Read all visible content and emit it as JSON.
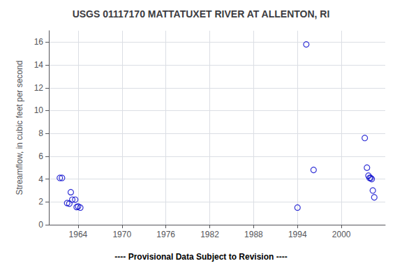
{
  "chart_data": {
    "type": "scatter",
    "title": "USGS 01117170 MATTATUXET RIVER AT ALLENTON, RI",
    "ylabel": "Streamflow, in cubic feet per second",
    "annotation": "---- Provisional Data Subject to Revision ----",
    "x": [
      1961.5,
      1961.8,
      1962.5,
      1962.8,
      1963.0,
      1963.2,
      1963.6,
      1963.8,
      1964.0,
      1964.3,
      1994.0,
      1995.2,
      1996.2,
      2003.2,
      2003.5,
      2003.7,
      2003.85,
      2004.0,
      2004.15,
      2004.3,
      2004.5
    ],
    "values": [
      4.1,
      4.1,
      1.9,
      1.85,
      2.85,
      2.2,
      2.2,
      1.55,
      1.6,
      1.5,
      1.5,
      15.8,
      4.8,
      7.6,
      5.0,
      4.3,
      4.1,
      4.1,
      4.0,
      3.0,
      2.4
    ],
    "color": "#0000CC",
    "marker": "circle",
    "xlim": [
      1960,
      2006
    ],
    "xticks": [
      1964,
      1970,
      1976,
      1982,
      1988,
      1994,
      2000
    ],
    "ylim": [
      0,
      17
    ],
    "yticks": [
      0,
      2,
      4,
      6,
      8,
      10,
      12,
      14,
      16
    ],
    "grid": true
  }
}
